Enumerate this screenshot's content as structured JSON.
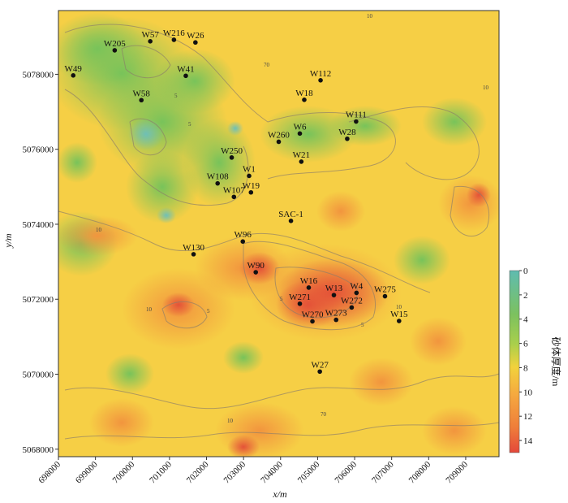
{
  "map": {
    "x_axis": {
      "title": "x/m",
      "ticks": [
        "698000",
        "699000",
        "700000",
        "701000",
        "702000",
        "703000",
        "704000",
        "705000",
        "706000",
        "707000",
        "708000",
        "709000"
      ],
      "range": [
        698000,
        709900
      ]
    },
    "y_axis": {
      "title": "y/m",
      "ticks": [
        "5068000",
        "5070000",
        "5072000",
        "5074000",
        "5076000",
        "5078000"
      ],
      "range": [
        5067800,
        5079700
      ]
    },
    "colorbar": {
      "title": "砂体厚度/m",
      "ticks": [
        "0",
        "2",
        "4",
        "6",
        "8",
        "10",
        "12",
        "14"
      ],
      "range": [
        0,
        15
      ],
      "colors": [
        "#5fbcb0",
        "#7cc15f",
        "#a8cf4c",
        "#f2d23c",
        "#f5a93f",
        "#ef7e3a",
        "#e4483a"
      ]
    },
    "contour_labels": [
      "10",
      "10",
      "5",
      "5",
      "70",
      "5",
      "10",
      "10",
      "5",
      "10",
      "5",
      "70",
      "10"
    ],
    "wells": [
      {
        "name": "W49",
        "x": 698400,
        "y": 5077970
      },
      {
        "name": "W205",
        "x": 699520,
        "y": 5078640
      },
      {
        "name": "W57",
        "x": 700480,
        "y": 5078880
      },
      {
        "name": "W216",
        "x": 701120,
        "y": 5078920
      },
      {
        "name": "W26",
        "x": 701700,
        "y": 5078850
      },
      {
        "name": "W41",
        "x": 701440,
        "y": 5077960
      },
      {
        "name": "W58",
        "x": 700240,
        "y": 5077310
      },
      {
        "name": "W112",
        "x": 705080,
        "y": 5077840
      },
      {
        "name": "W18",
        "x": 704640,
        "y": 5077320
      },
      {
        "name": "W111",
        "x": 706040,
        "y": 5076740
      },
      {
        "name": "W6",
        "x": 704520,
        "y": 5076420
      },
      {
        "name": "W28",
        "x": 705800,
        "y": 5076280
      },
      {
        "name": "W260",
        "x": 703950,
        "y": 5076200
      },
      {
        "name": "W250",
        "x": 702680,
        "y": 5075780
      },
      {
        "name": "W21",
        "x": 704560,
        "y": 5075670
      },
      {
        "name": "W1",
        "x": 703150,
        "y": 5075290
      },
      {
        "name": "W108",
        "x": 702300,
        "y": 5075090
      },
      {
        "name": "W19",
        "x": 703200,
        "y": 5074850
      },
      {
        "name": "W107",
        "x": 702740,
        "y": 5074730
      },
      {
        "name": "SAC-1",
        "x": 704280,
        "y": 5074090
      },
      {
        "name": "W96",
        "x": 702980,
        "y": 5073540
      },
      {
        "name": "W130",
        "x": 701650,
        "y": 5073200
      },
      {
        "name": "W90",
        "x": 703330,
        "y": 5072720
      },
      {
        "name": "W16",
        "x": 704760,
        "y": 5072310
      },
      {
        "name": "W13",
        "x": 705440,
        "y": 5072110
      },
      {
        "name": "W4",
        "x": 706050,
        "y": 5072170
      },
      {
        "name": "W275",
        "x": 706820,
        "y": 5072080
      },
      {
        "name": "W271",
        "x": 704520,
        "y": 5071880
      },
      {
        "name": "W272",
        "x": 705920,
        "y": 5071780
      },
      {
        "name": "W270",
        "x": 704860,
        "y": 5071410
      },
      {
        "name": "W273",
        "x": 705500,
        "y": 5071450
      },
      {
        "name": "W15",
        "x": 707200,
        "y": 5071420
      },
      {
        "name": "W27",
        "x": 705060,
        "y": 5070070
      }
    ]
  }
}
